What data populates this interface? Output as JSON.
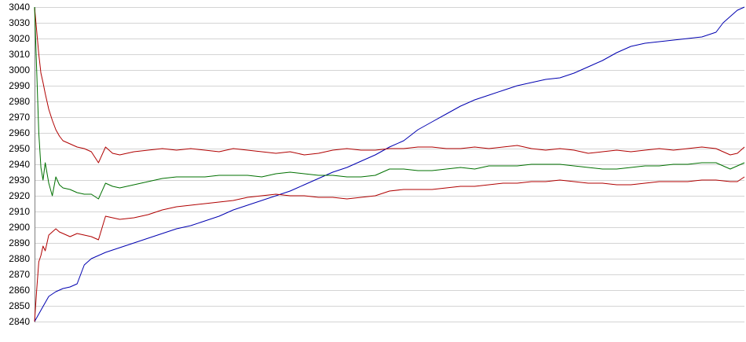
{
  "chart_data": {
    "type": "line",
    "title": "",
    "xlabel": "",
    "ylabel": "",
    "ylim": [
      2840,
      3040
    ],
    "xlim": [
      0,
      100
    ],
    "grid": true,
    "legend": "none",
    "yticks": [
      "2840",
      "2850",
      "2860",
      "2870",
      "2880",
      "2890",
      "2900",
      "2910",
      "2920",
      "2930",
      "2940",
      "2950",
      "2960",
      "2970",
      "2980",
      "2990",
      "3000",
      "3010",
      "3020",
      "3030",
      "3040"
    ],
    "series": [
      {
        "color": "#0000b0",
        "x": [
          0,
          1,
          2,
          3,
          4,
          5,
          6,
          7,
          8,
          9,
          10,
          12,
          14,
          16,
          18,
          20,
          22,
          24,
          26,
          28,
          30,
          32,
          34,
          36,
          38,
          40,
          42,
          44,
          46,
          48,
          50,
          52,
          54,
          56,
          58,
          60,
          62,
          64,
          66,
          68,
          70,
          72,
          74,
          76,
          78,
          80,
          82,
          84,
          86,
          88,
          90,
          92,
          94,
          96,
          97,
          98,
          99,
          100
        ],
        "values": [
          2840,
          2848,
          2856,
          2859,
          2861,
          2862,
          2864,
          2876,
          2880,
          2882,
          2884,
          2887,
          2890,
          2893,
          2896,
          2899,
          2901,
          2904,
          2907,
          2911,
          2914,
          2917,
          2920,
          2923,
          2927,
          2931,
          2935,
          2938,
          2942,
          2946,
          2951,
          2955,
          2962,
          2967,
          2972,
          2977,
          2981,
          2984,
          2987,
          2990,
          2992,
          2994,
          2995,
          2998,
          3002,
          3006,
          3011,
          3015,
          3017,
          3018,
          3019,
          3020,
          3021,
          3024,
          3030,
          3034,
          3038,
          3040
        ]
      },
      {
        "color": "#b00000",
        "x": [
          0,
          0.3,
          0.6,
          0.9,
          1.2,
          1.5,
          2,
          2.5,
          3,
          3.5,
          4,
          5,
          6,
          7,
          8,
          9,
          10,
          11,
          12,
          14,
          16,
          18,
          20,
          22,
          24,
          26,
          28,
          30,
          32,
          34,
          36,
          38,
          40,
          42,
          44,
          46,
          48,
          50,
          52,
          54,
          56,
          58,
          60,
          62,
          64,
          66,
          68,
          70,
          72,
          74,
          76,
          78,
          80,
          82,
          84,
          86,
          88,
          90,
          92,
          94,
          96,
          98,
          99,
          100
        ],
        "values": [
          3040,
          3025,
          3010,
          2998,
          2992,
          2985,
          2975,
          2968,
          2962,
          2958,
          2955,
          2953,
          2951,
          2950,
          2948,
          2941,
          2951,
          2947,
          2946,
          2948,
          2949,
          2950,
          2949,
          2950,
          2949,
          2948,
          2950,
          2949,
          2948,
          2947,
          2948,
          2946,
          2947,
          2949,
          2950,
          2949,
          2949,
          2950,
          2950,
          2951,
          2951,
          2950,
          2950,
          2951,
          2950,
          2951,
          2952,
          2950,
          2949,
          2950,
          2949,
          2947,
          2948,
          2949,
          2948,
          2949,
          2950,
          2949,
          2950,
          2951,
          2950,
          2946,
          2947,
          2951
        ]
      },
      {
        "color": "#007000",
        "x": [
          0,
          0.3,
          0.6,
          0.9,
          1.2,
          1.5,
          2,
          2.5,
          3,
          3.5,
          4,
          5,
          6,
          7,
          8,
          9,
          10,
          11,
          12,
          14,
          16,
          18,
          20,
          22,
          24,
          26,
          28,
          30,
          32,
          34,
          36,
          38,
          40,
          42,
          44,
          46,
          48,
          50,
          52,
          54,
          56,
          58,
          60,
          62,
          64,
          66,
          68,
          70,
          72,
          74,
          76,
          78,
          80,
          82,
          84,
          86,
          88,
          90,
          92,
          94,
          96,
          98,
          99,
          100
        ],
        "values": [
          3040,
          3000,
          2960,
          2938,
          2930,
          2941,
          2928,
          2920,
          2932,
          2927,
          2925,
          2924,
          2922,
          2921,
          2921,
          2918,
          2928,
          2926,
          2925,
          2927,
          2929,
          2931,
          2932,
          2932,
          2932,
          2933,
          2933,
          2933,
          2932,
          2934,
          2935,
          2934,
          2933,
          2933,
          2932,
          2932,
          2933,
          2937,
          2937,
          2936,
          2936,
          2937,
          2938,
          2937,
          2939,
          2939,
          2939,
          2940,
          2940,
          2940,
          2939,
          2938,
          2937,
          2937,
          2938,
          2939,
          2939,
          2940,
          2940,
          2941,
          2941,
          2937,
          2939,
          2941
        ]
      },
      {
        "color": "#b00000",
        "x": [
          0,
          0.3,
          0.6,
          0.9,
          1.2,
          1.5,
          2,
          2.5,
          3,
          3.5,
          4,
          5,
          6,
          7,
          8,
          9,
          10,
          11,
          12,
          14,
          16,
          18,
          20,
          22,
          24,
          26,
          28,
          30,
          32,
          34,
          36,
          38,
          40,
          42,
          44,
          46,
          48,
          50,
          52,
          54,
          56,
          58,
          60,
          62,
          64,
          66,
          68,
          70,
          72,
          74,
          76,
          78,
          80,
          82,
          84,
          86,
          88,
          90,
          92,
          94,
          96,
          98,
          99,
          100
        ],
        "values": [
          2840,
          2860,
          2878,
          2882,
          2888,
          2885,
          2895,
          2897,
          2899,
          2897,
          2896,
          2894,
          2896,
          2895,
          2894,
          2892,
          2907,
          2906,
          2905,
          2906,
          2908,
          2911,
          2913,
          2914,
          2915,
          2916,
          2917,
          2919,
          2920,
          2921,
          2920,
          2920,
          2919,
          2919,
          2918,
          2919,
          2920,
          2923,
          2924,
          2924,
          2924,
          2925,
          2926,
          2926,
          2927,
          2928,
          2928,
          2929,
          2929,
          2930,
          2929,
          2928,
          2928,
          2927,
          2927,
          2928,
          2929,
          2929,
          2929,
          2930,
          2930,
          2929,
          2929,
          2932
        ]
      }
    ]
  }
}
